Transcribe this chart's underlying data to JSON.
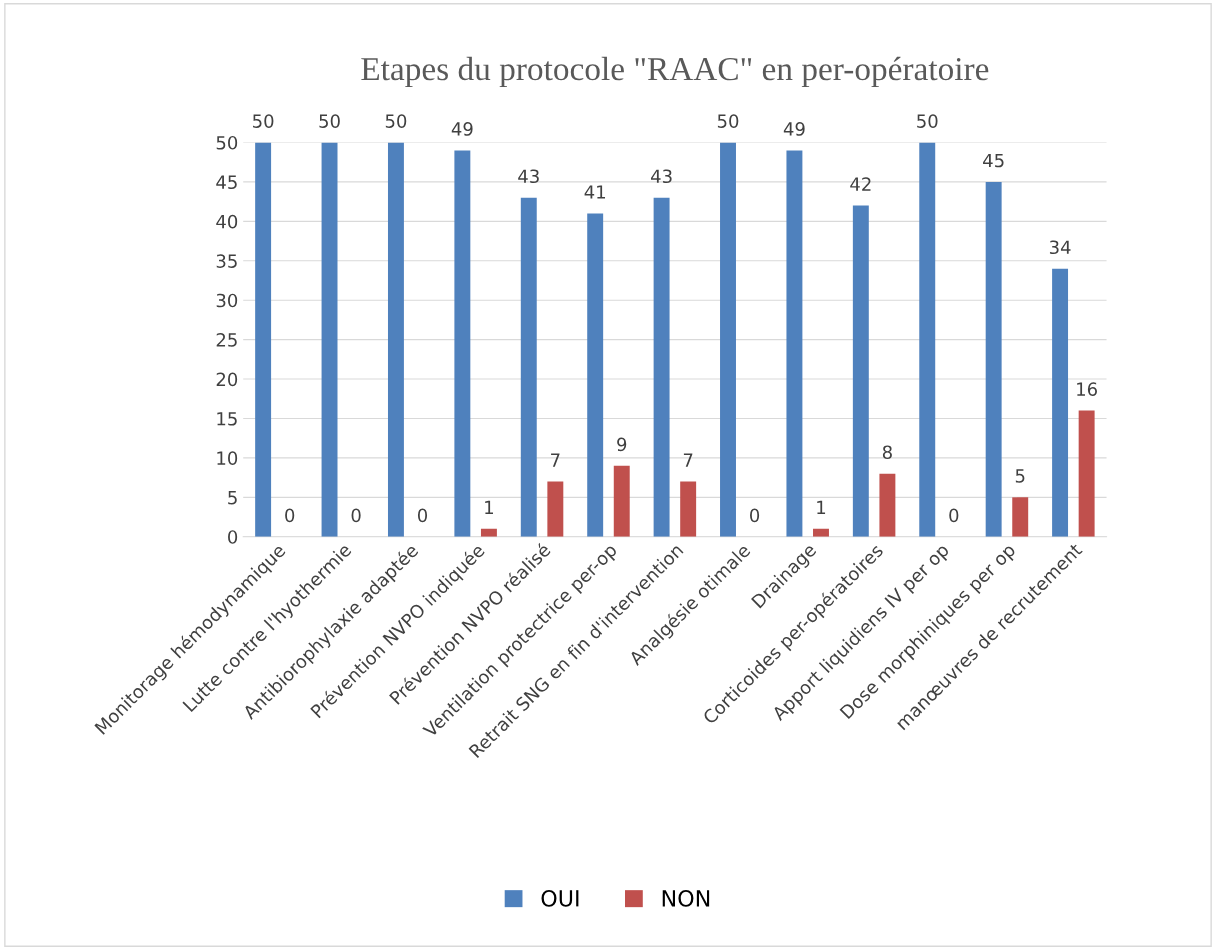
{
  "chart_data": {
    "type": "bar",
    "title": "Etapes du protocole \"RAAC\" en per-opératoire",
    "categories": [
      "Monitorage hémodynamique",
      "Lutte contre l'hyothermie",
      "Antibiorophylaxie adaptée",
      "Prévention NVPO indiquée",
      "Prévention NVPO réalisé",
      "Ventilation protectrice per-op",
      "Retrait SNG en fin d'intervention",
      "Analgésie otimale",
      "Drainage",
      "Corticoides per-opératoires",
      "Apport liquidiens IV per op",
      "Dose morphiniques per op",
      "manœuvres de recrutement"
    ],
    "series": [
      {
        "name": "OUI",
        "color": "#4f81bd",
        "values": [
          50,
          50,
          50,
          49,
          43,
          41,
          43,
          50,
          49,
          42,
          50,
          45,
          34
        ]
      },
      {
        "name": "NON",
        "color": "#c0504d",
        "values": [
          0,
          0,
          0,
          1,
          7,
          9,
          7,
          0,
          1,
          8,
          0,
          5,
          16
        ]
      }
    ],
    "ylim": [
      0,
      50
    ],
    "yticks": [
      0,
      5,
      10,
      15,
      20,
      25,
      30,
      35,
      40,
      45,
      50
    ],
    "grid": "y",
    "legend": "bottom",
    "data_labels": true
  }
}
